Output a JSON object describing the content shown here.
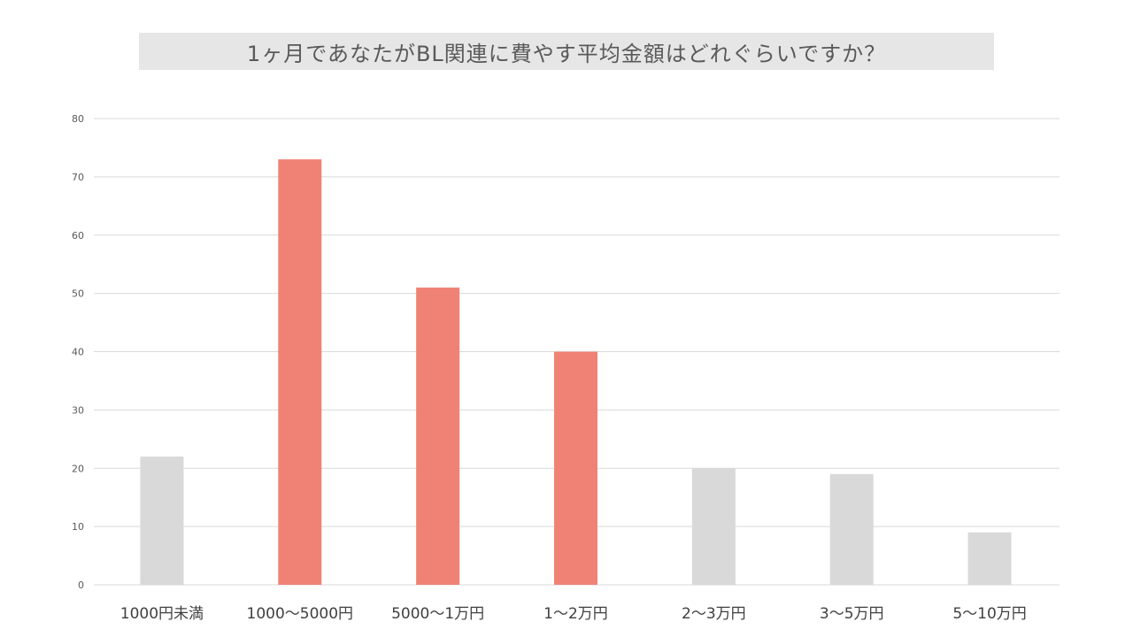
{
  "colors": {
    "highlight": "#f08275",
    "normal": "#d9d9d9",
    "grid": "#d9d9d9",
    "title_background": "#e7e6e6"
  },
  "chart_data": {
    "type": "bar",
    "title": "1ヶ月であなたがBL関連に費やす平均金額はどれぐらいですか？",
    "categories": [
      "1000円未満",
      "1000〜5000円",
      "5000〜1万円",
      "1〜2万円",
      "2〜3万円",
      "3〜5万円",
      "5〜10万円"
    ],
    "values": [
      22,
      73,
      51,
      40,
      20,
      19,
      9
    ],
    "highlighted": [
      false,
      true,
      true,
      true,
      false,
      false,
      false
    ],
    "ylim": [
      0,
      80
    ],
    "yticks": [
      0,
      10,
      20,
      30,
      40,
      50,
      60,
      70,
      80
    ],
    "grid": true,
    "legend": "none",
    "xlabel": "",
    "ylabel": ""
  }
}
